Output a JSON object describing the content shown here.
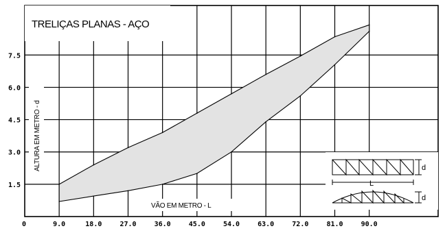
{
  "chart_data": {
    "type": "area",
    "title": "TRELIÇAS PLANAS - AÇO",
    "xlabel": "VÃO  EM  METRO - L",
    "ylabel": "ALTURA  EM  METRO - d",
    "x_ticks": [
      "0",
      "9.0",
      "18.0",
      "27.0",
      "36.0",
      "45.0",
      "54.0",
      "63.0",
      "72.0",
      "81.0",
      "90.0"
    ],
    "x_tick_values": [
      0,
      9,
      18,
      27,
      36,
      45,
      54,
      63,
      72,
      81,
      90
    ],
    "y_ticks": [
      "1.5",
      "3.0",
      "4.5",
      "6.0",
      "7.5"
    ],
    "y_tick_values": [
      1.5,
      3.0,
      4.5,
      6.0,
      7.5
    ],
    "xlim": [
      0,
      108
    ],
    "ylim": [
      0,
      9.8
    ],
    "grid": true,
    "series": [
      {
        "values_upper": [
          [
            9,
            1.5
          ],
          [
            18,
            2.4
          ],
          [
            27,
            3.2
          ],
          [
            36,
            3.9
          ],
          [
            45,
            4.8
          ],
          [
            54,
            5.7
          ],
          [
            63,
            6.6
          ],
          [
            72,
            7.45
          ],
          [
            81,
            8.35
          ],
          [
            90,
            8.9
          ]
        ],
        "values_lower": [
          [
            9,
            0.7
          ],
          [
            18,
            0.95
          ],
          [
            27,
            1.2
          ],
          [
            36,
            1.5
          ],
          [
            45,
            2.0
          ],
          [
            54,
            3.0
          ],
          [
            63,
            4.4
          ],
          [
            72,
            5.6
          ],
          [
            81,
            7.05
          ],
          [
            90,
            8.6
          ]
        ]
      }
    ],
    "symbol_labels": {
      "height": "d",
      "span": "L"
    }
  }
}
